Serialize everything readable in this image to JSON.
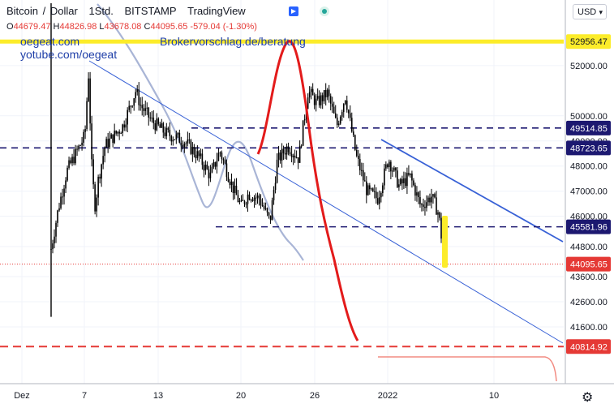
{
  "header": {
    "symbol": "Bitcoin",
    "separator": "/",
    "quote": "Dollar",
    "interval": "1Std.",
    "exchange": "BITSTAMP",
    "source": "TradingView"
  },
  "ohlc": {
    "open_label": "O",
    "open": "44679.47",
    "high_label": "H",
    "high": "44826.98",
    "low_label": "L",
    "low": "43678.08",
    "close_label": "C",
    "close": "44095.65",
    "change": "-579.04 (-1.30%)"
  },
  "notes": {
    "website": "oegeat.com",
    "youtube": "yotube.com/oegeat",
    "broker": "Brokervorschlag.de/beratung"
  },
  "currency_selector": {
    "value": "USD"
  },
  "colors": {
    "candle": "#000000",
    "channel": "#3861d6",
    "ma": "#a9b5d6",
    "red_curve": "#e31b1b",
    "highlight": "#fcec2a",
    "level_line": "#1c1870",
    "support_line": "#e53935",
    "price_tag": "#e53935",
    "level_tag": "#1c1870",
    "top_level": "#fcec2a"
  },
  "chart_data": {
    "type": "candlestick",
    "title": "Bitcoin / Dollar, 1Std., BITSTAMP",
    "ylim": [
      39500,
      53900
    ],
    "y_ticks": [
      41600,
      42600,
      43600,
      44800,
      46000,
      47000,
      48000,
      49000,
      50000,
      52000
    ],
    "x_ticks": [
      "Dez",
      "7",
      "13",
      "20",
      "26",
      "2022",
      "10"
    ],
    "price_path": [
      [
        0,
        44700
      ],
      [
        10,
        46300
      ],
      [
        22,
        47800
      ],
      [
        38,
        48700
      ],
      [
        47,
        49200
      ],
      [
        52,
        51700
      ],
      [
        57,
        47700
      ],
      [
        62,
        46200
      ],
      [
        64,
        47200
      ],
      [
        75,
        48800
      ],
      [
        100,
        49600
      ],
      [
        118,
        51000
      ],
      [
        125,
        50400
      ],
      [
        140,
        49800
      ],
      [
        160,
        49300
      ],
      [
        185,
        49000
      ],
      [
        205,
        48400
      ],
      [
        222,
        47600
      ],
      [
        235,
        48600
      ],
      [
        255,
        47000
      ],
      [
        265,
        46400
      ],
      [
        275,
        46900
      ],
      [
        290,
        46700
      ],
      [
        305,
        45800
      ],
      [
        315,
        48200
      ],
      [
        330,
        48800
      ],
      [
        345,
        48300
      ],
      [
        358,
        51000
      ],
      [
        370,
        50500
      ],
      [
        385,
        50900
      ],
      [
        398,
        49600
      ],
      [
        410,
        50800
      ],
      [
        425,
        48400
      ],
      [
        440,
        47000
      ],
      [
        455,
        46700
      ],
      [
        470,
        48300
      ],
      [
        485,
        47200
      ],
      [
        500,
        47600
      ],
      [
        515,
        46400
      ],
      [
        530,
        46800
      ],
      [
        540,
        46100
      ],
      [
        548,
        44095.65
      ]
    ],
    "levels": [
      {
        "value": 52956.47,
        "label": "52956.47",
        "kind": "yellow"
      },
      {
        "value": 49514.85,
        "label": "49514.85",
        "kind": "level"
      },
      {
        "value": 48723.65,
        "label": "48723.65",
        "kind": "level"
      },
      {
        "value": 45581.96,
        "label": "45581.96",
        "kind": "level"
      },
      {
        "value": 44095.65,
        "label": "44095.65",
        "kind": "price"
      },
      {
        "value": 40814.92,
        "label": "40814.92",
        "kind": "support"
      }
    ]
  }
}
